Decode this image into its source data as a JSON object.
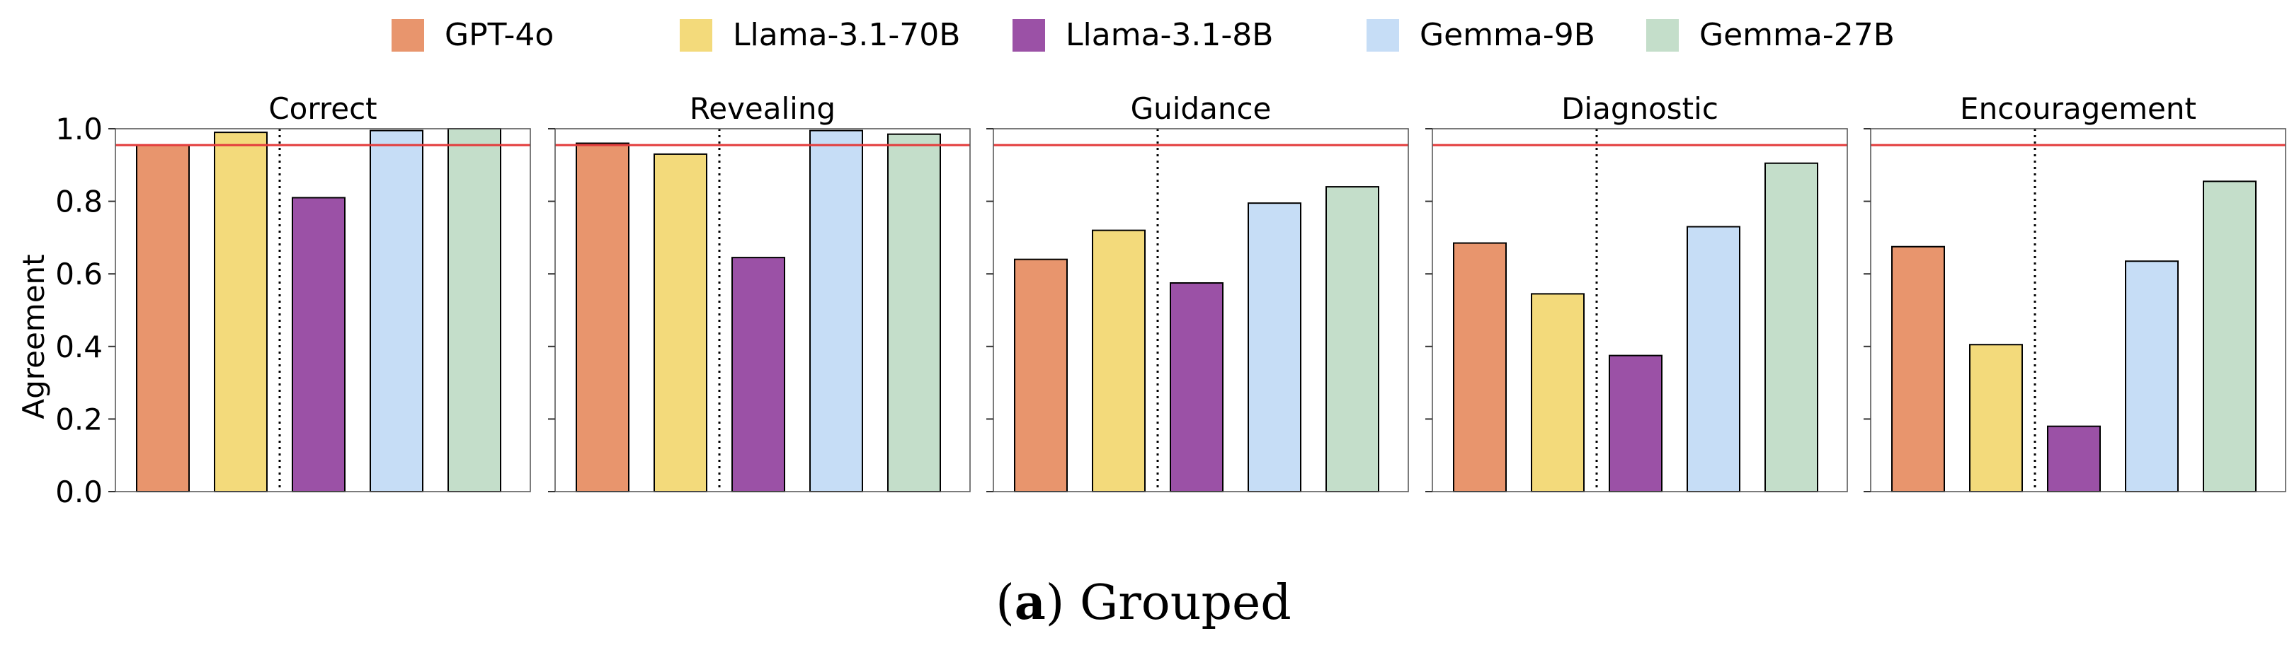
{
  "legend": [
    {
      "label": "GPT-4o",
      "color": "#E8956D"
    },
    {
      "label": "Llama-3.1-70B",
      "color": "#F3DA7B"
    },
    {
      "label": "Llama-3.1-8B",
      "color": "#9B51A6"
    },
    {
      "label": "Gemma-9B",
      "color": "#C6DDF6"
    },
    {
      "label": "Gemma-27B",
      "color": "#C4DECA"
    }
  ],
  "ylabel": "Agreement",
  "yticks": [
    "0.0",
    "0.2",
    "0.4",
    "0.6",
    "0.8",
    "1.0"
  ],
  "caption": {
    "letter": "a",
    "text": "Grouped"
  },
  "reference_line": {
    "value": 0.955,
    "color": "#E33B3B"
  },
  "chart_data": {
    "type": "bar",
    "ylim": [
      0,
      1.0
    ],
    "series_names": [
      "GPT-4o",
      "Llama-3.1-70B",
      "Llama-3.1-8B",
      "Gemma-9B",
      "Gemma-27B"
    ],
    "panels": [
      {
        "title": "Correct",
        "values": [
          0.955,
          0.99,
          0.81,
          0.995,
          1.0
        ]
      },
      {
        "title": "Revealing",
        "values": [
          0.96,
          0.93,
          0.645,
          0.995,
          0.985
        ]
      },
      {
        "title": "Guidance",
        "values": [
          0.64,
          0.72,
          0.575,
          0.795,
          0.84
        ]
      },
      {
        "title": "Diagnostic",
        "values": [
          0.685,
          0.545,
          0.375,
          0.73,
          0.905
        ]
      },
      {
        "title": "Encouragement",
        "values": [
          0.675,
          0.405,
          0.18,
          0.635,
          0.855
        ]
      }
    ]
  }
}
